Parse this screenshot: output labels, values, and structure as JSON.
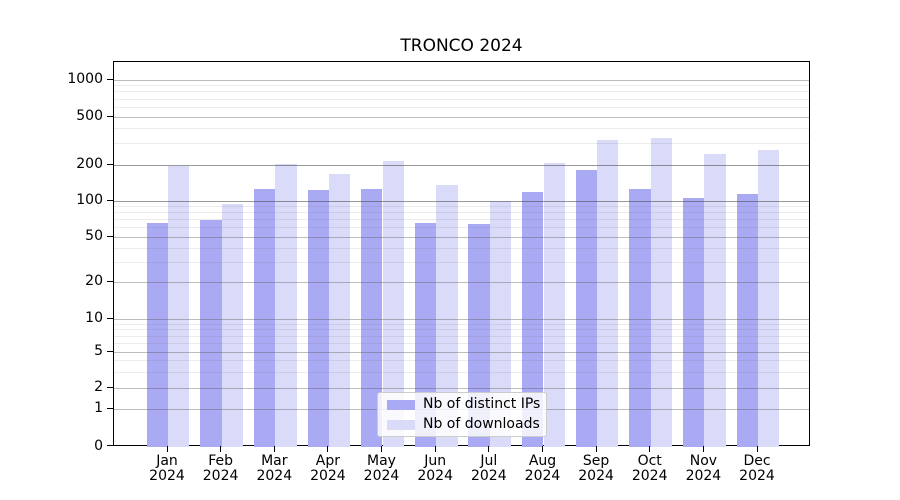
{
  "figure": {
    "title": "TRONCO 2024"
  },
  "chart_data": {
    "type": "bar",
    "title": "TRONCO 2024",
    "scale": "symlog",
    "grid": true,
    "legend_position": "lower center",
    "xlabel": "",
    "ylabel": "",
    "months": [
      "Jan",
      "Feb",
      "Mar",
      "Apr",
      "May",
      "Jun",
      "Jul",
      "Aug",
      "Sep",
      "Oct",
      "Nov",
      "Dec"
    ],
    "year_label": "2024",
    "categories": [
      "Jan 2024",
      "Feb 2024",
      "Mar 2024",
      "Apr 2024",
      "May 2024",
      "Jun 2024",
      "Jul 2024",
      "Aug 2024",
      "Sep 2024",
      "Oct 2024",
      "Nov 2024",
      "Dec 2024"
    ],
    "series": [
      {
        "name": "Nb of distinct IPs",
        "color": "#a9a9f4",
        "values": [
          65,
          70,
          127,
          124,
          127,
          65,
          64,
          119,
          182,
          126,
          107,
          115
        ]
      },
      {
        "name": "Nb of downloads",
        "color": "#dadaf9",
        "values": [
          197,
          94,
          205,
          168,
          215,
          136,
          101,
          209,
          322,
          337,
          245,
          266
        ]
      }
    ],
    "yticks": [
      0,
      1,
      2,
      5,
      10,
      20,
      50,
      100,
      200,
      500,
      1000
    ],
    "yticks_emphasized": [
      100,
      200
    ],
    "minor_yticks": [
      3,
      4,
      6,
      7,
      8,
      9,
      30,
      40,
      60,
      70,
      80,
      90,
      300,
      400,
      600,
      700,
      800,
      900
    ],
    "ylim": [
      0,
      1400
    ]
  }
}
